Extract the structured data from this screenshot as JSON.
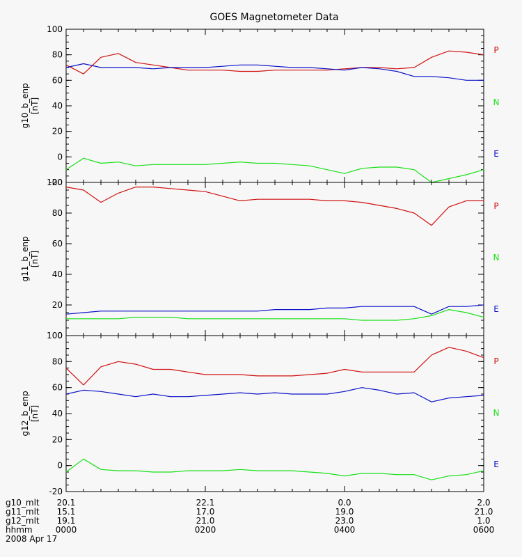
{
  "title": "GOES Magnetometer Data",
  "colors": {
    "P": "#d01010",
    "N": "#18e018",
    "E": "#0a10c8",
    "axis": "#000000",
    "background": "#f7f7f7"
  },
  "legend": [
    {
      "label": "P",
      "color": "#d01010"
    },
    {
      "label": "N",
      "color": "#18e018"
    },
    {
      "label": "E",
      "color": "#0a10c8"
    }
  ],
  "footer": {
    "rows": [
      {
        "label": "g10_mlt",
        "values": [
          "20.1",
          "22.1",
          "0.0",
          "2.0"
        ]
      },
      {
        "label": "g11_mlt",
        "values": [
          "15.1",
          "17.0",
          "19.0",
          "21.0"
        ]
      },
      {
        "label": "g12_mlt",
        "values": [
          "19.1",
          "21.0",
          "23.0",
          "1.0"
        ]
      },
      {
        "label": "hhmm",
        "values": [
          "0000",
          "0200",
          "0400",
          "0600"
        ]
      }
    ],
    "date": "2008 Apr 17"
  },
  "chart_data": [
    {
      "type": "line",
      "ylabel": "g10_b_enp",
      "yunit": "[nT]",
      "ylim": [
        -20,
        100
      ],
      "yticks": [
        -20,
        0,
        20,
        40,
        60,
        80,
        100
      ],
      "x": [
        "00:00",
        "00:15",
        "00:30",
        "00:45",
        "01:00",
        "01:15",
        "01:30",
        "01:45",
        "02:00",
        "02:15",
        "02:30",
        "02:45",
        "03:00",
        "03:15",
        "03:30",
        "03:45",
        "04:00",
        "04:15",
        "04:30",
        "04:45",
        "05:00",
        "05:15",
        "05:30",
        "05:45",
        "06:00"
      ],
      "series": [
        {
          "name": "P",
          "values": [
            72,
            65,
            78,
            81,
            74,
            72,
            70,
            68,
            68,
            68,
            67,
            67,
            68,
            68,
            68,
            68,
            69,
            70,
            70,
            69,
            70,
            78,
            83,
            82,
            80
          ]
        },
        {
          "name": "N",
          "values": [
            -10,
            -1,
            -5,
            -4,
            -7,
            -6,
            -6,
            -6,
            -6,
            -5,
            -4,
            -5,
            -5,
            -6,
            -7,
            -10,
            -13,
            -9,
            -8,
            -8,
            -10,
            -20,
            -17,
            -14,
            -10
          ]
        },
        {
          "name": "E",
          "values": [
            70,
            73,
            70,
            70,
            70,
            69,
            70,
            70,
            70,
            71,
            72,
            72,
            71,
            70,
            70,
            69,
            68,
            70,
            69,
            67,
            63,
            63,
            62,
            60,
            60
          ]
        }
      ]
    },
    {
      "type": "line",
      "ylabel": "g11_b_enp",
      "yunit": "[nT]",
      "ylim": [
        0,
        100
      ],
      "yticks": [
        0,
        20,
        40,
        60,
        80,
        100
      ],
      "x": [
        "00:00",
        "00:15",
        "00:30",
        "00:45",
        "01:00",
        "01:15",
        "01:30",
        "01:45",
        "02:00",
        "02:15",
        "02:30",
        "02:45",
        "03:00",
        "03:15",
        "03:30",
        "03:45",
        "04:00",
        "04:15",
        "04:30",
        "04:45",
        "05:00",
        "05:15",
        "05:30",
        "05:45",
        "06:00"
      ],
      "series": [
        {
          "name": "P",
          "values": [
            97,
            95,
            87,
            93,
            97,
            97,
            96,
            95,
            94,
            91,
            88,
            89,
            89,
            89,
            89,
            88,
            88,
            87,
            85,
            83,
            80,
            72,
            84,
            88,
            88
          ]
        },
        {
          "name": "N",
          "values": [
            11,
            11,
            11,
            11,
            12,
            12,
            12,
            11,
            11,
            11,
            11,
            11,
            11,
            11,
            11,
            11,
            11,
            10,
            10,
            10,
            11,
            13,
            17,
            15,
            12
          ]
        },
        {
          "name": "E",
          "values": [
            14,
            15,
            16,
            16,
            16,
            16,
            16,
            16,
            16,
            16,
            16,
            16,
            17,
            17,
            17,
            18,
            18,
            19,
            19,
            19,
            19,
            14,
            19,
            19,
            20
          ]
        }
      ]
    },
    {
      "type": "line",
      "ylabel": "g12_b_enp",
      "yunit": "[nT]",
      "ylim": [
        -20,
        100
      ],
      "yticks": [
        -20,
        0,
        20,
        40,
        60,
        80,
        100
      ],
      "x": [
        "00:00",
        "00:15",
        "00:30",
        "00:45",
        "01:00",
        "01:15",
        "01:30",
        "01:45",
        "02:00",
        "02:15",
        "02:30",
        "02:45",
        "03:00",
        "03:15",
        "03:30",
        "03:45",
        "04:00",
        "04:15",
        "04:30",
        "04:45",
        "05:00",
        "05:15",
        "05:30",
        "05:45",
        "06:00"
      ],
      "series": [
        {
          "name": "P",
          "values": [
            75,
            62,
            76,
            80,
            78,
            74,
            74,
            72,
            70,
            70,
            70,
            69,
            69,
            69,
            70,
            71,
            74,
            72,
            72,
            72,
            72,
            85,
            91,
            88,
            83
          ]
        },
        {
          "name": "N",
          "values": [
            -5,
            5,
            -3,
            -4,
            -4,
            -5,
            -5,
            -4,
            -4,
            -4,
            -3,
            -4,
            -4,
            -4,
            -5,
            -6,
            -8,
            -6,
            -6,
            -7,
            -7,
            -11,
            -8,
            -7,
            -4
          ]
        },
        {
          "name": "E",
          "values": [
            55,
            58,
            57,
            55,
            53,
            55,
            53,
            53,
            54,
            55,
            56,
            55,
            56,
            55,
            55,
            55,
            57,
            60,
            58,
            55,
            56,
            49,
            52,
            53,
            54
          ]
        }
      ]
    }
  ]
}
